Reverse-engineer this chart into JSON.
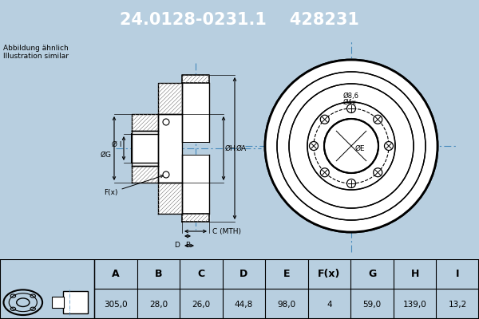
{
  "title_part1": "24.0128-0231.1",
  "title_part2": "428231",
  "title_bg": "#0000cc",
  "title_fg": "#ffffff",
  "subtitle1": "Abbildung ähnlich",
  "subtitle2": "Illustration similar",
  "main_bg": "#ffffff",
  "fig_bg": "#b8cfe0",
  "table_bg": "#ffffff",
  "table_headers": [
    "A",
    "B",
    "C",
    "D",
    "E",
    "F(x)",
    "G",
    "H",
    "I"
  ],
  "table_values": [
    "305,0",
    "28,0",
    "26,0",
    "44,8",
    "98,0",
    "4",
    "59,0",
    "139,0",
    "13,2"
  ],
  "line_color": "#000000",
  "dim_line_color": "#000000",
  "center_line_color": "#4488bb",
  "hatch_color": "#555555"
}
